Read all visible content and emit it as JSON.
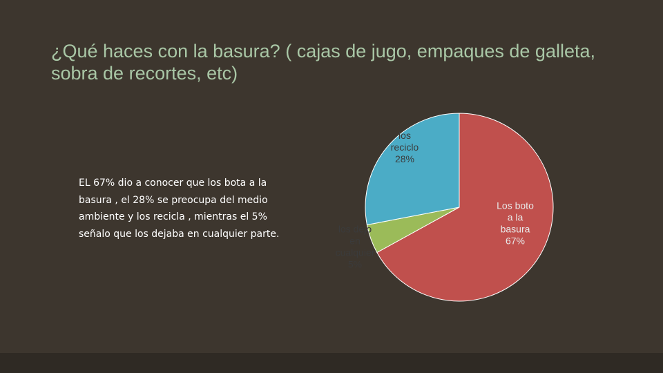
{
  "slide": {
    "title": "¿Qué haces con la basura? ( cajas de jugo, empaques de galleta, sobra de recortes, etc)",
    "body": "EL 67% dio a conocer que los bota a la basura , el 28% se preocupa del medio ambiente y los recicla , mientras el 5% señalo que los dejaba en cualquier parte."
  },
  "chart_data": {
    "type": "pie",
    "title": "",
    "slices": [
      {
        "label_lines": [
          "Los boto",
          "a la",
          "basura",
          "67%"
        ],
        "value": 67,
        "color": "#c0504d"
      },
      {
        "label_lines": [
          "los dejo",
          "en",
          "cualquier",
          "5%"
        ],
        "value": 5,
        "color": "#9bbb59"
      },
      {
        "label_lines": [
          "los",
          "reciclo",
          "28%"
        ],
        "value": 28,
        "color": "#4bacc6"
      }
    ]
  }
}
